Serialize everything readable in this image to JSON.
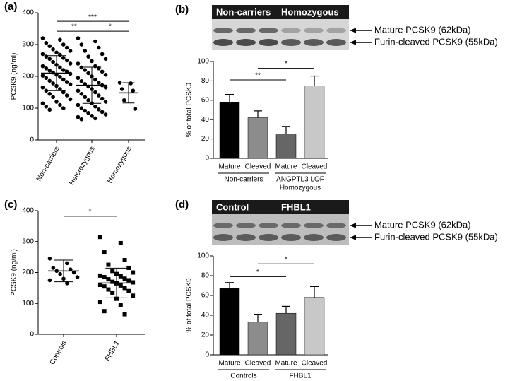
{
  "chart_data": [
    {
      "type": "strip",
      "panel": "(a)",
      "ylabel": "PCSK9 (ng/ml)",
      "ylim": [
        0,
        400
      ],
      "yticks": [
        0,
        100,
        200,
        300,
        400
      ],
      "annotations": [
        "***",
        "**",
        "*"
      ],
      "series": [
        {
          "name": "Non-carriers",
          "marker": "circle",
          "mean": 210,
          "sd": 55,
          "values": [
            320,
            315,
            305,
            300,
            295,
            290,
            285,
            280,
            275,
            270,
            268,
            262,
            258,
            255,
            250,
            245,
            240,
            236,
            232,
            228,
            225,
            220,
            218,
            215,
            212,
            208,
            205,
            202,
            198,
            195,
            190,
            186,
            182,
            178,
            175,
            170,
            165,
            160,
            155,
            150,
            145,
            140,
            135,
            128,
            120,
            115,
            110,
            105,
            100,
            95
          ]
        },
        {
          "name": "Heterozygous",
          "marker": "circle",
          "mean": 172,
          "sd": 57,
          "values": [
            320,
            310,
            300,
            290,
            280,
            270,
            262,
            255,
            248,
            240,
            232,
            228,
            225,
            220,
            215,
            210,
            205,
            200,
            195,
            190,
            185,
            180,
            176,
            172,
            168,
            165,
            160,
            155,
            150,
            145,
            140,
            135,
            130,
            125,
            120,
            115,
            110,
            105,
            100,
            96,
            92,
            88,
            85,
            80,
            76,
            72,
            68,
            65
          ]
        },
        {
          "name": "Homozygous",
          "marker": "circle",
          "mean": 148,
          "sd": 32,
          "values": [
            180,
            178,
            160,
            155,
            125,
            98
          ]
        }
      ]
    },
    {
      "type": "bar",
      "panel": "(b)",
      "ylabel": "% of total PCSK9",
      "ylim": [
        0,
        100
      ],
      "yticks": [
        0,
        20,
        40,
        60,
        80,
        100
      ],
      "categories": [
        "Mature",
        "Cleaved",
        "Mature",
        "Cleaved"
      ],
      "values": [
        58,
        42,
        25,
        75
      ],
      "errors": [
        8,
        7,
        8,
        10
      ],
      "colors": [
        "#000000",
        "#8c8c8c",
        "#666666",
        "#c8c8c8"
      ],
      "groups": [
        [
          "Non-carriers"
        ],
        [
          "ANGPTL3 LOF",
          "Homozygous"
        ]
      ],
      "annotations": [
        "**",
        "*"
      ],
      "blot_labels": [
        "Non-carriers",
        "Homozygous"
      ],
      "band_labels": [
        "Mature PCSK9 (62kDa)",
        "Furin-cleaved PCSK9 (55kDa)"
      ]
    },
    {
      "type": "strip",
      "panel": "(c)",
      "ylabel": "PCSK9 (ng/ml)",
      "ylim": [
        0,
        400
      ],
      "yticks": [
        0,
        100,
        200,
        300,
        400
      ],
      "annotations": [
        "*"
      ],
      "series": [
        {
          "name": "Controls",
          "marker": "circle",
          "mean": 205,
          "sd": 35,
          "values": [
            245,
            230,
            215,
            210,
            205,
            200,
            195,
            185,
            180,
            175,
            165
          ]
        },
        {
          "name": "FHBL1",
          "marker": "square",
          "mean": 166,
          "sd": 48,
          "values": [
            315,
            295,
            265,
            240,
            225,
            215,
            205,
            200,
            195,
            190,
            188,
            185,
            180,
            178,
            175,
            170,
            168,
            165,
            160,
            158,
            155,
            150,
            145,
            140,
            135,
            125,
            115,
            105,
            95,
            75,
            65
          ]
        }
      ]
    },
    {
      "type": "bar",
      "panel": "(d)",
      "ylabel": "% of total PCSK9",
      "ylim": [
        0,
        100
      ],
      "yticks": [
        0,
        20,
        40,
        60,
        80,
        100
      ],
      "categories": [
        "Mature",
        "Cleaved",
        "Mature",
        "Cleaved"
      ],
      "values": [
        67,
        33,
        42,
        58
      ],
      "errors": [
        6,
        8,
        7,
        11
      ],
      "colors": [
        "#000000",
        "#8c8c8c",
        "#666666",
        "#c8c8c8"
      ],
      "groups": [
        [
          "Controls"
        ],
        [
          "FHBL1"
        ]
      ],
      "annotations": [
        "*",
        "*"
      ],
      "blot_labels": [
        "Control",
        "FHBL1"
      ],
      "band_labels": [
        "Mature PCSK9 (62kDa)",
        "Furin-cleaved PCSK9 (55kDa)"
      ]
    }
  ]
}
